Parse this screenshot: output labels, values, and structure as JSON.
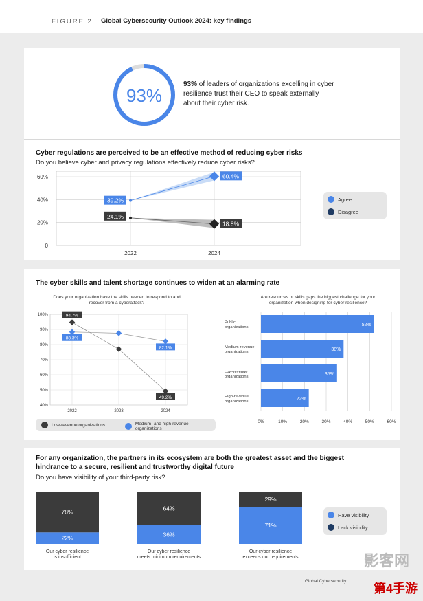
{
  "header": {
    "figure_label": "FIGURE 2",
    "title": "Global Cybersecurity Outlook 2024: key findings"
  },
  "donut": {
    "value_label": "93%",
    "fraction": 0.93,
    "text_bold": "93%",
    "text_rest": " of leaders of organizations excelling in cyber resilience trust their CEO to speak externally about their cyber risk."
  },
  "section1": {
    "title": "Cyber regulations are perceived to be an effective method of reducing cyber risks",
    "subtitle": "Do you believe cyber and privacy regulations effectively reduce cyber risks?"
  },
  "section2": {
    "title": "The cyber skills and talent shortage continues to widen at an alarming rate",
    "chart_left_title": "Does your organization have the skills needed to respond to and recover from a cyberattack?",
    "chart_right_title": "Are resources or skills gaps the biggest challenge for your organization when designing for cyber resilience?"
  },
  "section3": {
    "title": "For any organization, the partners in its ecosystem are both the greatest asset and the biggest hindrance to a secure, resilient and trustworthy digital future",
    "subtitle": "Do you have visibility of your third-party risk?"
  },
  "footer": {
    "source": "Global Cybersecurity"
  },
  "watermarks": {
    "top": "影客网",
    "bottom": "第4手游"
  },
  "colors": {
    "blue": "#4a86e8",
    "light_blue": "#c9dcf7",
    "dark": "#3b3b3b",
    "navy": "#1f3b63"
  },
  "chart_data": [
    {
      "type": "line",
      "x": [
        "2022",
        "2024"
      ],
      "ylim": [
        0,
        60
      ],
      "yticks": [
        "0",
        "20%",
        "40%",
        "60%"
      ],
      "series": [
        {
          "name": "Agree",
          "values": [
            39.2,
            60.4
          ],
          "labels": [
            "39.2%",
            "60.4%"
          ]
        },
        {
          "name": "Disagree",
          "values": [
            24.1,
            18.8
          ],
          "labels": [
            "24.1%",
            "18.8%"
          ]
        }
      ],
      "legend_position": "right"
    },
    {
      "type": "line",
      "x": [
        "2022",
        "2023",
        "2024"
      ],
      "ylim": [
        40,
        100
      ],
      "yticks": [
        "40%",
        "50%",
        "60%",
        "70%",
        "80%",
        "90%",
        "100%"
      ],
      "series": [
        {
          "name": "Low-revenue organizations",
          "values": [
            94.7,
            77,
            49.2
          ],
          "labels": [
            "94.7%",
            "",
            "49.2%"
          ]
        },
        {
          "name": "Medium- and high-revenue organizations",
          "values": [
            88.3,
            87.5,
            82.1
          ],
          "labels": [
            "88.3%",
            "",
            "82.1%"
          ]
        }
      ],
      "legend_position": "bottom"
    },
    {
      "type": "bar",
      "orientation": "horizontal",
      "categories": [
        "Public organizations",
        "Medium-revenue organizations",
        "Low-revenue organizations",
        "High-revenue organizations"
      ],
      "values": [
        52,
        38,
        35,
        22
      ],
      "labels": [
        "52%",
        "38%",
        "35%",
        "22%"
      ],
      "xlim": [
        0,
        60
      ],
      "xticks": [
        "0%",
        "10%",
        "20%",
        "30%",
        "40%",
        "50%",
        "60%"
      ]
    },
    {
      "type": "bar",
      "stacked": true,
      "categories": [
        "Our cyber resilience is insufficient",
        "Our cyber resilience meets minimum requirements",
        "Our cyber resilience exceeds our requirements"
      ],
      "series": [
        {
          "name": "Have visibility",
          "values": [
            22,
            36,
            71
          ],
          "labels": [
            "22%",
            "36%",
            "71%"
          ]
        },
        {
          "name": "Lack visibility",
          "values": [
            78,
            64,
            29
          ],
          "labels": [
            "78%",
            "64%",
            "29%"
          ]
        }
      ],
      "legend_position": "right"
    }
  ]
}
